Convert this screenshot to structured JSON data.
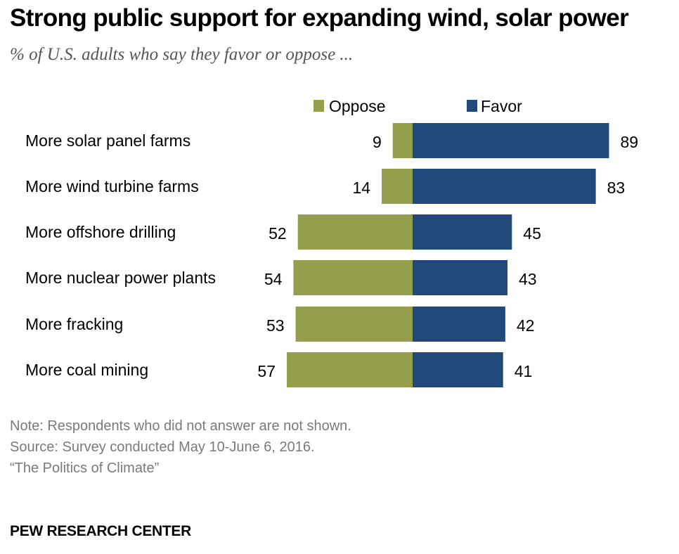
{
  "header": {
    "title": "Strong public support for expanding wind, solar power",
    "subtitle": "% of U.S. adults who say they favor or oppose ..."
  },
  "chart_data": {
    "type": "bar",
    "orientation": "horizontal-diverging",
    "categories": [
      "More solar panel farms",
      "More wind turbine farms",
      "More offshore drilling",
      "More nuclear power plants",
      "More fracking",
      "More coal mining"
    ],
    "series": [
      {
        "name": "Oppose",
        "values": [
          9,
          14,
          52,
          54,
          53,
          57
        ],
        "color": "#959F4B"
      },
      {
        "name": "Favor",
        "values": [
          89,
          83,
          45,
          43,
          42,
          41
        ],
        "color": "#21497A"
      }
    ],
    "legend_position": "top",
    "grid": false
  },
  "footer": {
    "note": "Note: Respondents who did not answer are not shown.",
    "source": "Source: Survey conducted May 10-June 6, 2016.",
    "report": "“The Politics of Climate”",
    "brand": "PEW RESEARCH CENTER"
  }
}
